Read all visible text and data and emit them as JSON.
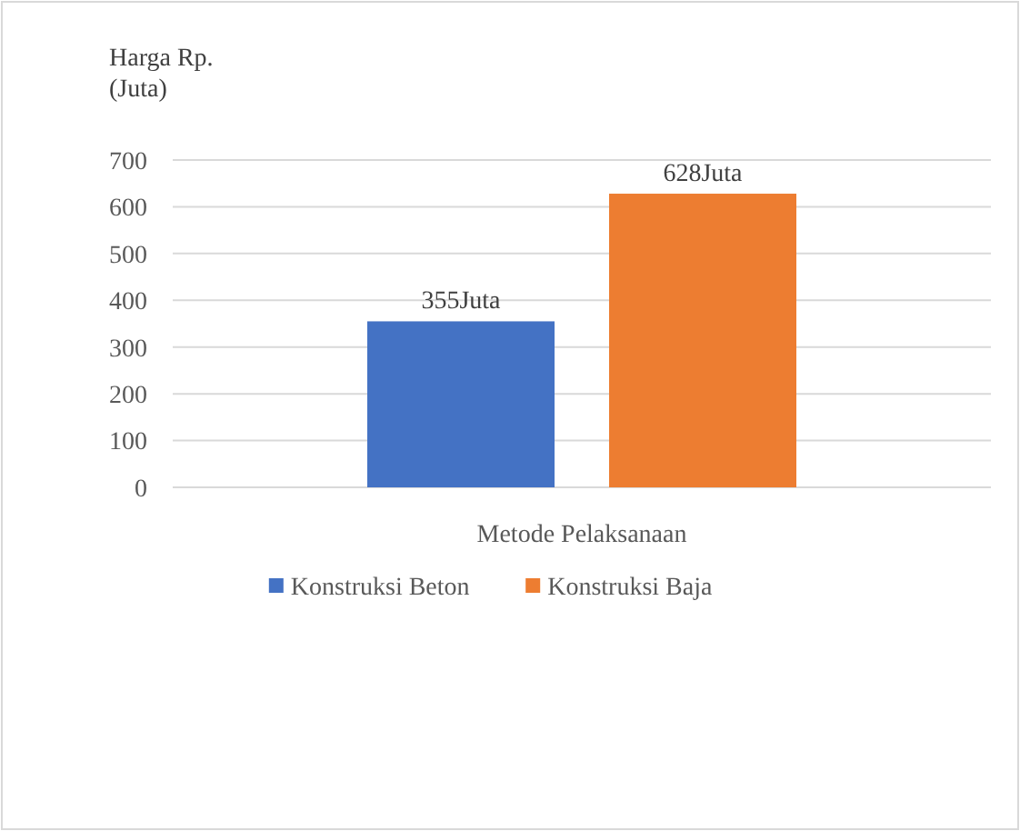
{
  "chart_data": {
    "type": "bar",
    "ylabel": "Harga Rp. (Juta)",
    "categories": [
      "Metode Pelaksanaan"
    ],
    "series": [
      {
        "name": "Konstruksi Beton",
        "color": "#4472c4",
        "values": [
          355
        ],
        "value_labels": [
          "355Juta"
        ]
      },
      {
        "name": "Konstruksi Baja",
        "color": "#ed7d31",
        "values": [
          628
        ],
        "value_labels": [
          "628Juta"
        ]
      }
    ],
    "ylim": [
      0,
      700
    ],
    "yticks": [
      0,
      100,
      200,
      300,
      400,
      500,
      600,
      700
    ],
    "grid": "y",
    "legend": "bottom"
  }
}
